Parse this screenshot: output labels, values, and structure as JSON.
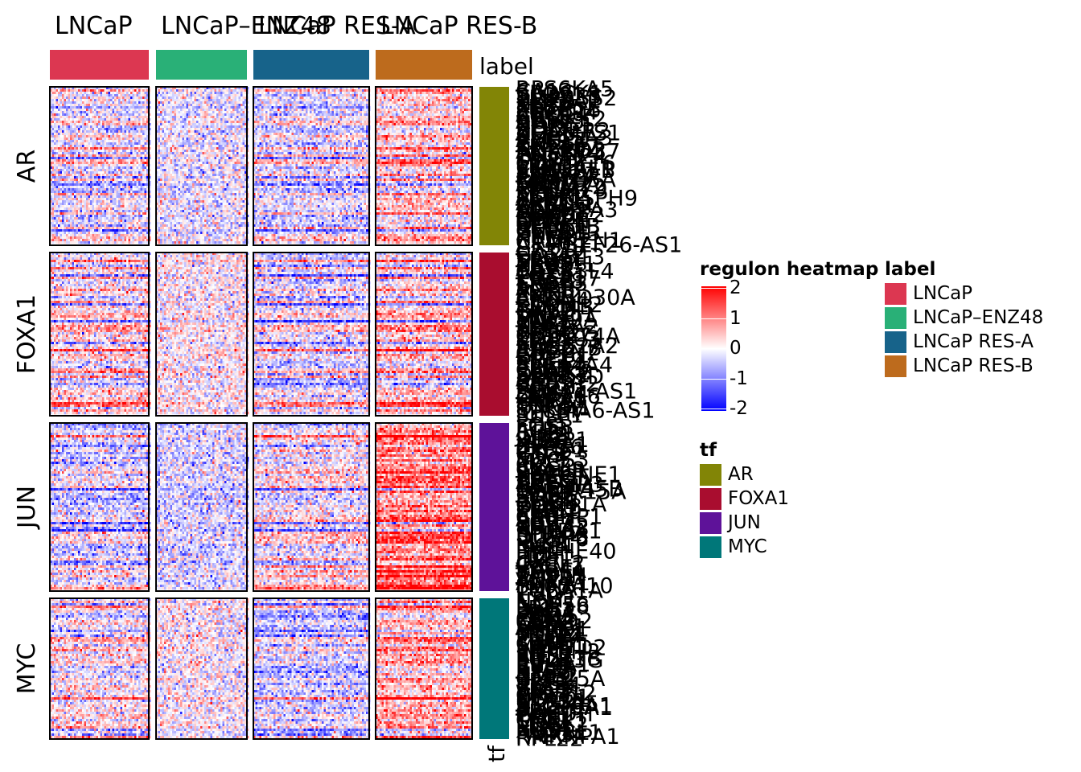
{
  "colors": {
    "high": "#ff0000",
    "mid": "#ffffff",
    "low": "#0000ff",
    "labels": [
      "#dc3751",
      "#29b077",
      "#17638a",
      "#bd6b1d"
    ],
    "tfs": [
      "#828506",
      "#a90d2f",
      "#5e1299",
      "#007779"
    ]
  },
  "annotation": {
    "column_label_name": "label",
    "row_tf_name": "tf"
  },
  "chart_data": {
    "type": "heatmap",
    "title": "",
    "column_groups": [
      "LNCaP",
      "LNCaP–ENZ48",
      "LNCaP RES-A",
      "LNCaP RES-B"
    ],
    "row_groups": [
      "AR",
      "FOXA1",
      "JUN",
      "MYC"
    ],
    "value_range": [
      -2,
      2
    ],
    "group_mean_pattern": [
      [
        0.0,
        -0.1,
        -0.1,
        0.5
      ],
      [
        0.15,
        0.05,
        -0.15,
        0.3
      ],
      [
        -0.3,
        -0.3,
        0.0,
        1.0
      ],
      [
        0.1,
        0.05,
        -0.3,
        0.6
      ]
    ],
    "gene_labels": {
      "AR": [
        "RPS6KA5",
        "CA12",
        "SPOCK1",
        "RAB22B",
        "TMPRSS2",
        "PMEPA1",
        "NKX3-1",
        "KLK2",
        "FKBP5",
        "ZBTB16",
        "STEAP4",
        "ABCC4",
        "SGK1",
        "CAMKK2",
        "ACSL3",
        "UAP1",
        "NDRG1",
        "ELL2",
        "HOMER2",
        "ADAMTS1",
        "KLK3",
        "SLC45A3",
        "AZGP1",
        "EAF2",
        "ZNF467",
        "TMEFF2",
        "NCAPD3",
        "ANKRD37",
        "PTGER4",
        "DHCR24",
        "TPD52",
        "SORD",
        "C1orf116",
        "MAF",
        "ST6GAL1",
        "ZNF385B",
        "SNAI2",
        "ELOVL7",
        "PPAP2A",
        "FAM105A",
        "GNMT",
        "ABHD2",
        "MBOAT2",
        "TMEM79",
        "SPDEF",
        "KCNN2",
        "ACPP",
        "MPHOSPH9",
        "PART1",
        "AR-AS1",
        "PRR15L",
        "SYT4",
        "ALDH1A3",
        "TRPM8",
        "MAPRE2",
        "ORM1",
        "SMS",
        "CENPN",
        "OPRK1",
        "SEC61B",
        "RHOU",
        "GLUD1",
        "ZNF613",
        "KRT8",
        "HPGD",
        "CAMK2N1",
        "C14orf1",
        "ARHGEF26-AS1"
      ],
      "FOXA1": [
        "GATA2",
        "HOXB13",
        "SPDEF",
        "TRPS1",
        "NKX3-1",
        "XBP1",
        "AGR2",
        "CREB3L4",
        "TBX3",
        "FOXA1",
        "ZNF217",
        "KRT18",
        "ERBB3",
        "TFF3",
        "AGR3",
        "ESR1",
        "MYB",
        "SYTL2",
        "ANKRD30A",
        "CLDN4",
        "PIP",
        "SCUBE2",
        "KDM4B",
        "TMC5",
        "CA12",
        "DNALI1",
        "MLPH",
        "TTC39A",
        "NAT1",
        "RARA",
        "SLC7A2",
        "FBP1",
        "NRIP1",
        "TFAP2C",
        "CCDC74A",
        "ZNF703",
        "MAPT",
        "ELF3",
        "SCGB2A2",
        "RAB27B",
        "ARG2",
        "CLSTN2",
        "GREB1",
        "STC2",
        "KRT19",
        "EVL",
        "SLC44A4",
        "PRLR",
        "C5AR2",
        "SPINK8",
        "DEGS2",
        "FAM83D",
        "ABAT",
        "BCAS1",
        "CELSR2",
        "KIF12",
        "PGR",
        "FOXA1-AS1",
        "DUSP4",
        "ZNF366",
        "GFRA1",
        "PREX1",
        "LRP2",
        "TOX3",
        "DACH1",
        "ST8SIA6-AS1",
        "IGF1R",
        "SULF1"
      ],
      "JUN": [
        "FOS",
        "FOSB",
        "ATF3",
        "EGR1",
        "JUNB",
        "IER2",
        "DUSP1",
        "KLF6",
        "NR4A1",
        "ZFP36",
        "CYR61",
        "CTGF",
        "IER3",
        "KLF4",
        "SOCS3",
        "MYC",
        "CCL2",
        "IL6",
        "CXCL8",
        "PLAUR",
        "SERPINE1",
        "HBEGF",
        "EREG",
        "AREG",
        "TNFAIP3",
        "NFKBIA",
        "GADD45B",
        "PPP1R15A",
        "MAFF",
        "BTG2",
        "SGK1",
        "RHOB",
        "CDKN1A",
        "DDIT3",
        "TRIB1",
        "KLF10",
        "SIK1",
        "CSRNP1",
        "ARC",
        "EGR2",
        "EGR3",
        "NR4A2",
        "NR4A3",
        "PHLDA1",
        "SPRY2",
        "DUSP5",
        "DUSP6",
        "PLK2",
        "PLK3",
        "MCL1",
        "IRF1",
        "BHLHE40",
        "HES1",
        "ID1",
        "ID2",
        "LIF",
        "CXCL2",
        "CXCL1",
        "ICAM1",
        "VEGFA",
        "THBS1",
        "TAGLN",
        "ACTB",
        "VCL",
        "ANXA1",
        "S100A10",
        "LMNA",
        "TUBA1A"
      ],
      "MYC": [
        "NPM1",
        "NCL",
        "NOP56",
        "NOP58",
        "FBL",
        "DKC1",
        "LDHA",
        "ENO1",
        "PKM",
        "CDK4",
        "CCND2",
        "ODC1",
        "SRM",
        "APEX1",
        "HSPD1",
        "HSPE1",
        "MCM2",
        "MCM4",
        "MCM7",
        "PCNA",
        "TERT",
        "CAD",
        "SHMT1",
        "MTHFD2",
        "PPAT",
        "IMPDH2",
        "RRP9",
        "RRS1",
        "POLR1B",
        "POLR3G",
        "EIF4E",
        "EIF4A1",
        "RPL3",
        "RPL5",
        "RPS3",
        "RPS6",
        "NME1",
        "NME2",
        "CDC25A",
        "E2F1",
        "E2F2",
        "TFAP4",
        "ID2",
        "BOP1",
        "PES1",
        "WDR12",
        "GNL3",
        "NOLC1",
        "NOC2L",
        "UTP20",
        "SLC7A5",
        "SLC16A1",
        "SLC19A1",
        "HK2",
        "PFKM",
        "GAPDH",
        "PGK1",
        "TPI1",
        "CHEK1",
        "TK1",
        "MYBL2",
        "MINA",
        "PUS7",
        "XPO1",
        "RUVBL1",
        "PA2G4",
        "HNRNPA1",
        "RPL22"
      ]
    },
    "legends": {
      "scale": {
        "title": "regulon heatmap",
        "ticks": [
          "2",
          "1",
          "0",
          "-1",
          "-2"
        ],
        "tick_values": [
          2,
          1,
          0,
          -1,
          -2
        ]
      },
      "label": {
        "title": "label",
        "items": [
          "LNCaP",
          "LNCaP–ENZ48",
          "LNCaP RES-A",
          "LNCaP RES-B"
        ]
      },
      "tf": {
        "title": "tf",
        "items": [
          "AR",
          "FOXA1",
          "JUN",
          "MYC"
        ]
      }
    }
  }
}
